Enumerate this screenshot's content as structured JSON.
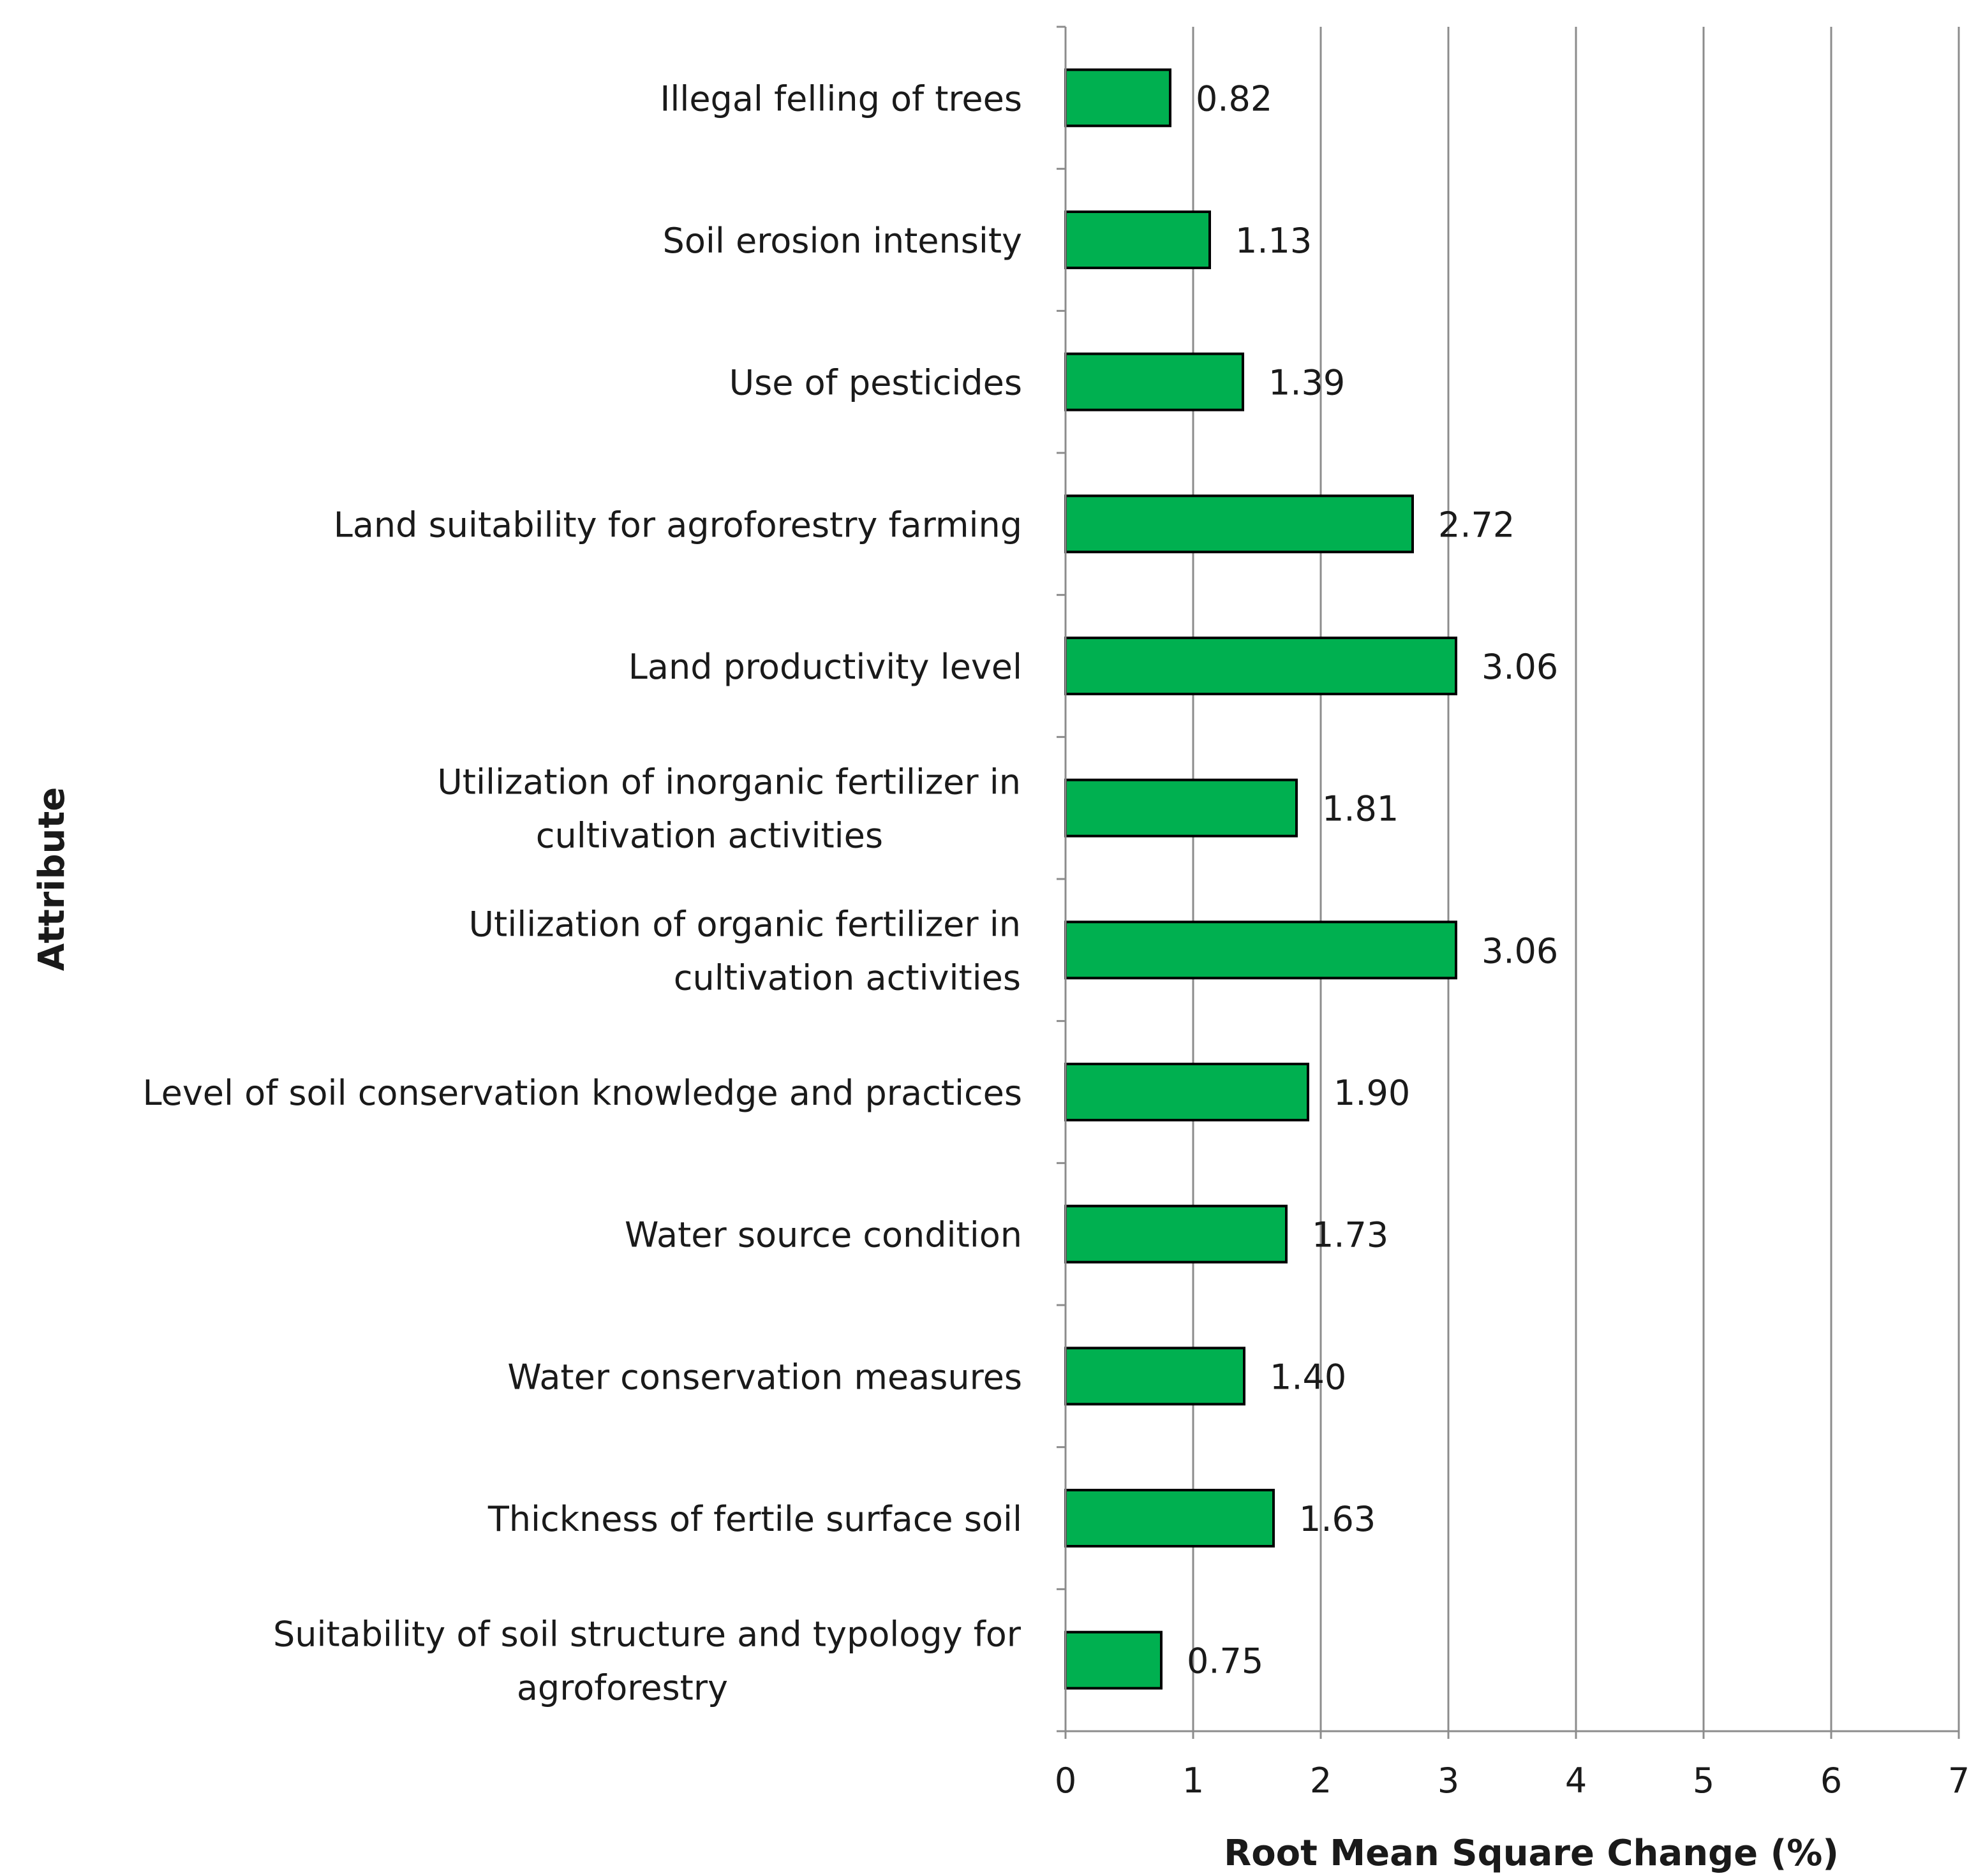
{
  "chart_data": {
    "type": "bar",
    "orientation": "horizontal",
    "title": "",
    "xlabel": "Root Mean Square Change (%)",
    "ylabel": "Attribute",
    "xlim": [
      0,
      7
    ],
    "xticks": [
      "0",
      "1",
      "2",
      "3",
      "4",
      "5",
      "6",
      "7"
    ],
    "grid": true,
    "bar_color": "#00b050",
    "bar_edge_color": "#000000",
    "categories": [
      [
        "Illegal felling of trees"
      ],
      [
        "Soil erosion intensity"
      ],
      [
        "Use of pesticides"
      ],
      [
        "Land suitability for agroforestry farming"
      ],
      [
        "Land productivity level"
      ],
      [
        "Utilization of inorganic fertilizer in",
        "cultivation activities"
      ],
      [
        "Utilization of organic fertilizer in",
        "cultivation activities"
      ],
      [
        "Level of soil conservation knowledge and practices"
      ],
      [
        "Water source condition"
      ],
      [
        "Water conservation measures"
      ],
      [
        "Thickness of fertile surface soil"
      ],
      [
        "Suitability of soil structure and typology for",
        "agroforestry"
      ]
    ],
    "values": [
      0.82,
      1.13,
      1.39,
      2.72,
      3.06,
      1.81,
      3.06,
      1.9,
      1.73,
      1.4,
      1.63,
      0.75
    ],
    "value_labels": [
      "0.82",
      "1.13",
      "1.39",
      "2.72",
      "3.06",
      "1.81",
      "3.06",
      "1.90",
      "1.73",
      "1.40",
      "1.63",
      "0.75"
    ]
  }
}
